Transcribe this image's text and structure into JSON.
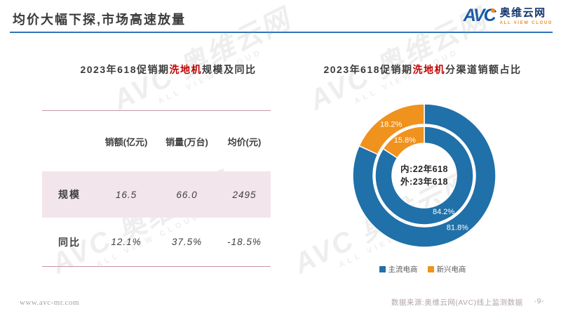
{
  "header": {
    "title": "均价大幅下探,市场高速放量",
    "logo": {
      "abbr": "AVC",
      "name_cn": "奥维云网",
      "tagline": "ALL VIEW CLOUD"
    },
    "accent_color": "#2E74B5"
  },
  "watermark": {
    "text": "AVC 奥维云网",
    "subtext": "ALL VIEW CLOUD"
  },
  "left_panel": {
    "title": {
      "prefix": "2023年618促销期",
      "highlight": "洗地机",
      "suffix": "规模及同比"
    },
    "table": {
      "columns": [
        "销额(亿元)",
        "销量(万台)",
        "均价(元)"
      ],
      "rows": [
        {
          "label": "规模",
          "values": [
            "16.5",
            "66.0",
            "2495"
          ]
        },
        {
          "label": "同比",
          "values": [
            "12.1%",
            "37.5%",
            "-18.5%"
          ]
        }
      ],
      "highlight_row_bg": "#F3E5EC",
      "rule_color": "#C993A8"
    }
  },
  "right_panel": {
    "title": {
      "prefix": "2023年618促销期",
      "highlight": "洗地机",
      "suffix": "分渠道销额占比"
    }
  },
  "chart_data": {
    "type": "pie",
    "subtype": "nested-donut",
    "title": "2023年618促销期洗地机分渠道销额占比",
    "categories": [
      "主流电商",
      "新兴电商"
    ],
    "colors": [
      "#2070A9",
      "#F0921E"
    ],
    "unit": "%",
    "start_angle": "top",
    "direction": "clockwise",
    "rings": [
      {
        "name": "22年618",
        "position": "inner",
        "values": [
          84.2,
          15.8
        ]
      },
      {
        "name": "23年618",
        "position": "outer",
        "values": [
          81.8,
          18.2
        ]
      }
    ],
    "center_note": [
      "内:22年618",
      "外:23年618"
    ],
    "legend_position": "bottom",
    "label_color": "#FFFFFF"
  },
  "footer": {
    "website": "www.avc-mr.com",
    "source": "数据来源:奥维云网(AVC)线上监测数据",
    "page": "-9-"
  }
}
